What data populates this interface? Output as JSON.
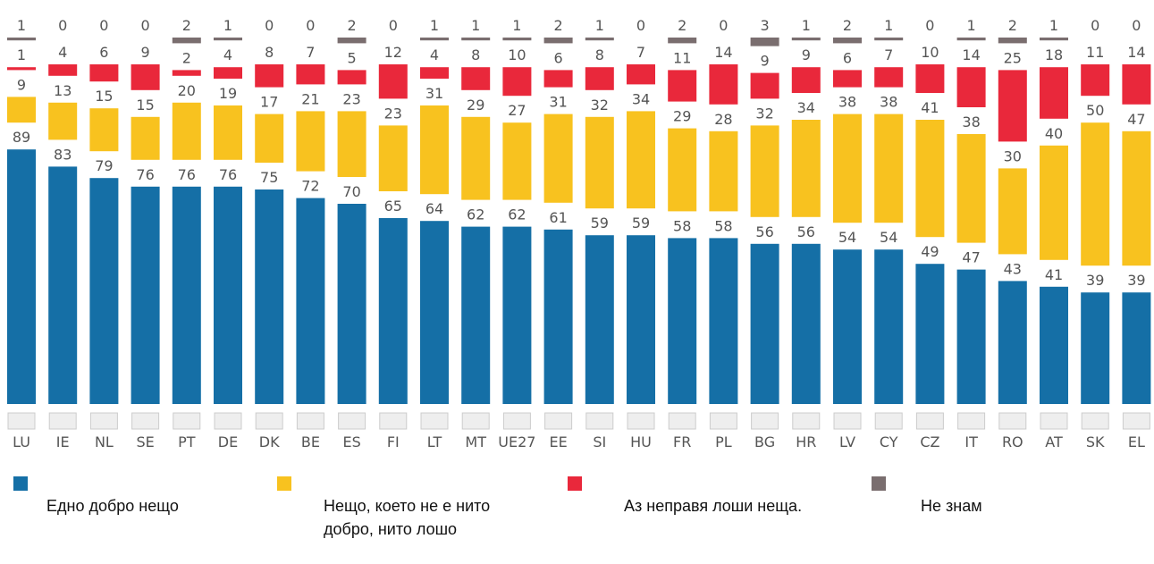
{
  "chart_data": {
    "type": "bar",
    "stacked": true,
    "categories": [
      "LU",
      "IE",
      "NL",
      "SE",
      "PT",
      "DE",
      "DK",
      "BE",
      "ES",
      "FI",
      "LT",
      "MT",
      "UE27",
      "EE",
      "SI",
      "HU",
      "FR",
      "PL",
      "BG",
      "HR",
      "LV",
      "CY",
      "CZ",
      "IT",
      "RO",
      "AT",
      "SK",
      "EL"
    ],
    "series": [
      {
        "name": "Едно добро нещо",
        "color": "#156fa6",
        "values": [
          89,
          83,
          79,
          76,
          76,
          76,
          75,
          72,
          70,
          65,
          64,
          62,
          62,
          61,
          59,
          59,
          58,
          58,
          56,
          56,
          54,
          54,
          49,
          47,
          43,
          41,
          39,
          39
        ]
      },
      {
        "name": "Нещо, което не е нито добро, нито лошо",
        "color": "#f8c21f",
        "values": [
          9,
          13,
          15,
          15,
          20,
          19,
          17,
          21,
          23,
          23,
          31,
          29,
          27,
          31,
          32,
          34,
          29,
          28,
          32,
          34,
          38,
          38,
          41,
          38,
          30,
          40,
          50,
          47
        ]
      },
      {
        "name": "Аз неправя лоши неща.",
        "color": "#e9283b",
        "values": [
          1,
          4,
          6,
          9,
          2,
          4,
          8,
          7,
          5,
          12,
          4,
          8,
          10,
          6,
          8,
          7,
          11,
          14,
          9,
          9,
          6,
          7,
          10,
          14,
          25,
          18,
          11,
          14
        ]
      },
      {
        "name": "Не знам",
        "color": "#7a6e6f",
        "values": [
          1,
          0,
          0,
          0,
          2,
          1,
          0,
          0,
          2,
          0,
          1,
          1,
          1,
          2,
          1,
          0,
          2,
          0,
          3,
          1,
          2,
          1,
          0,
          1,
          2,
          1,
          0,
          0
        ]
      }
    ]
  }
}
